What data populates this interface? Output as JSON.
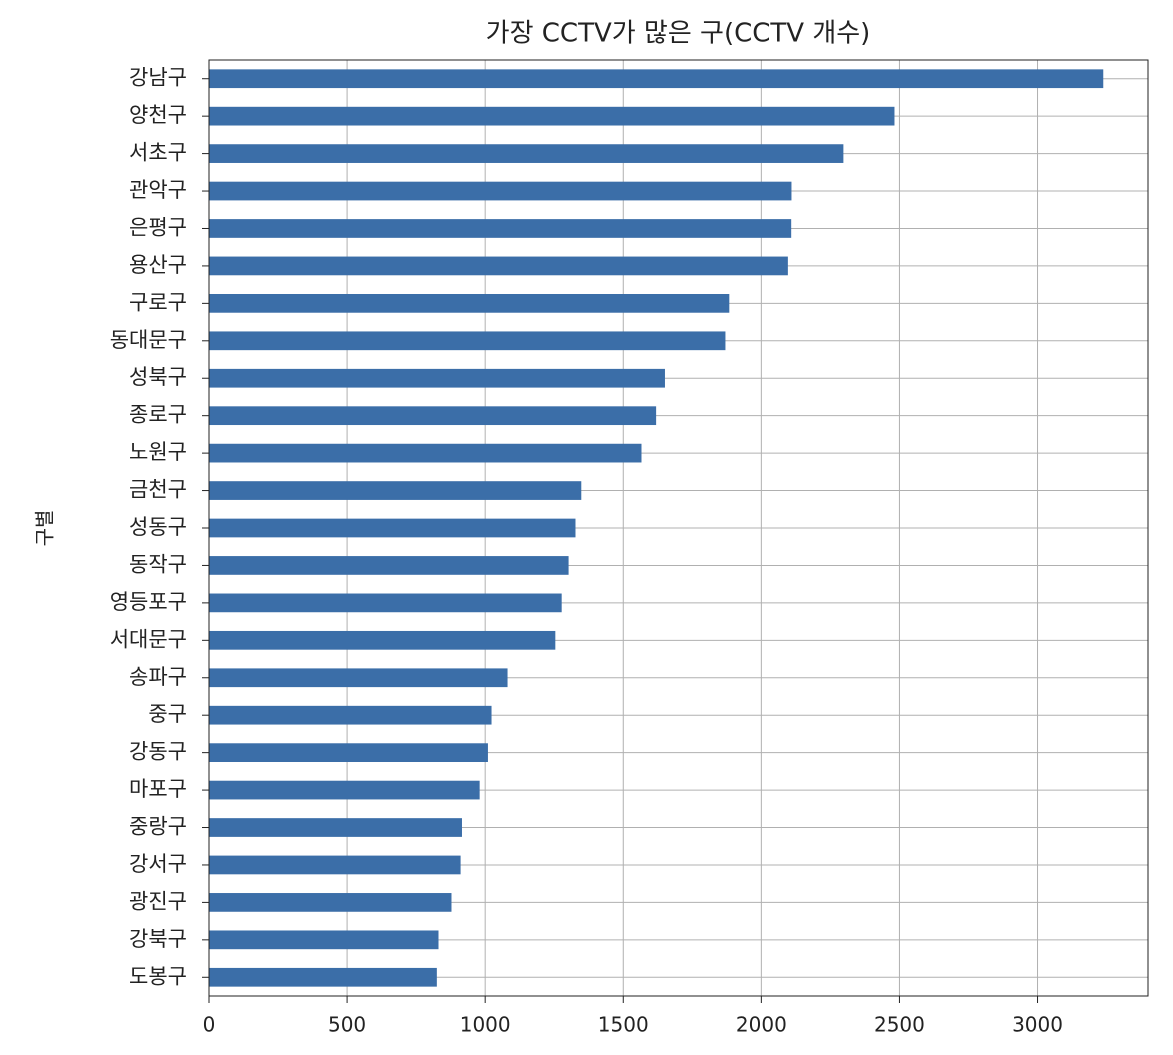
{
  "chart_data": {
    "type": "barh",
    "title": "가장 CCTV가 많은 구(CCTV 개수)",
    "y_label": "구별",
    "categories": [
      "강남구",
      "양천구",
      "서초구",
      "관악구",
      "은평구",
      "용산구",
      "구로구",
      "동대문구",
      "성북구",
      "종로구",
      "노원구",
      "금천구",
      "성동구",
      "동작구",
      "영등포구",
      "서대문구",
      "송파구",
      "중구",
      "강동구",
      "마포구",
      "중랑구",
      "강서구",
      "광진구",
      "강북구",
      "도봉구"
    ],
    "values": [
      3238,
      2482,
      2297,
      2109,
      2108,
      2096,
      1884,
      1870,
      1651,
      1619,
      1566,
      1348,
      1327,
      1302,
      1277,
      1254,
      1081,
      1023,
      1010,
      980,
      916,
      911,
      878,
      831,
      825
    ],
    "color": "#3b6ea8",
    "xlim": [
      0,
      3400
    ],
    "xticks": [
      0,
      500,
      1000,
      1500,
      2000,
      2500,
      3000
    ],
    "grid": true
  }
}
